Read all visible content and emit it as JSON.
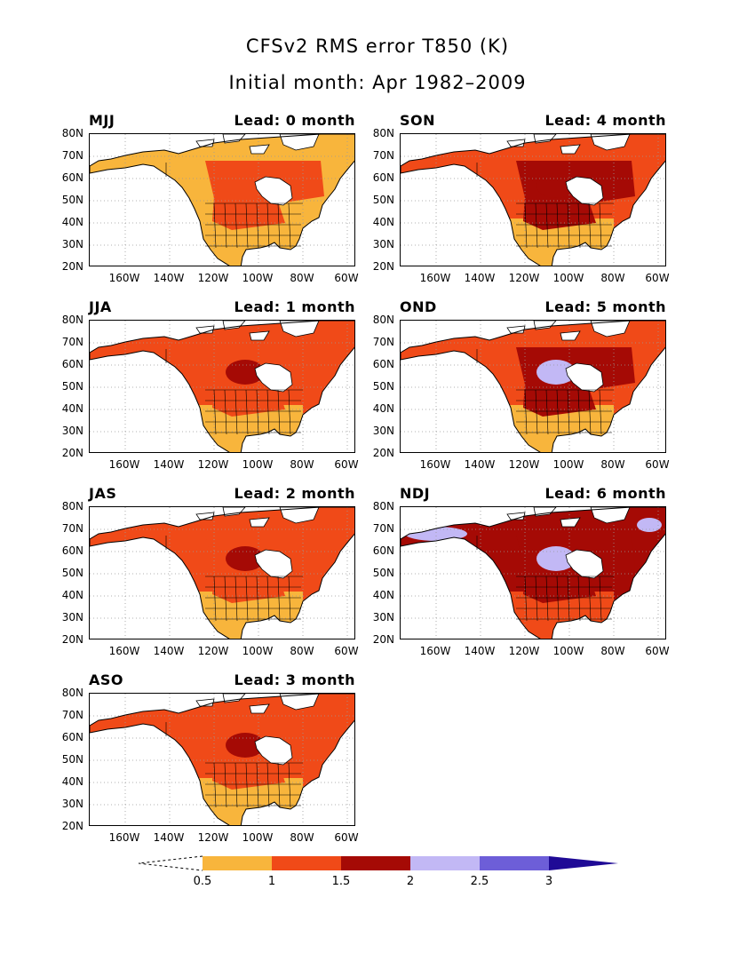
{
  "title": "CFSv2 RMS error T850 (K)",
  "subtitle": "Initial month: Apr 1982–2009",
  "colors": {
    "c0_5": "#f8b53c",
    "c1": "#f04a18",
    "c1_5": "#a50a05",
    "c2": "#c2b8f5",
    "c2_5": "#6d5ed8",
    "c3": "#1f0a96",
    "land_lines": "#000000",
    "ocean": "#ffffff"
  },
  "lat_labels": [
    "80N",
    "70N",
    "60N",
    "50N",
    "40N",
    "30N",
    "20N"
  ],
  "lon_labels": [
    "160W",
    "140W",
    "120W",
    "100W",
    "80W",
    "60W"
  ],
  "panels": [
    {
      "season": "MJJ",
      "lead": "Lead: 0 month",
      "level": "low"
    },
    {
      "season": "JJA",
      "lead": "Lead: 1 month",
      "level": "mid"
    },
    {
      "season": "JAS",
      "lead": "Lead: 2 month",
      "level": "mid"
    },
    {
      "season": "ASO",
      "lead": "Lead: 3 month",
      "level": "mid"
    },
    {
      "season": "SON",
      "lead": "Lead: 4 month",
      "level": "high"
    },
    {
      "season": "OND",
      "lead": "Lead: 5 month",
      "level": "higher"
    },
    {
      "season": "NDJ",
      "lead": "Lead: 6 month",
      "level": "highest"
    }
  ],
  "colorbar": {
    "ticks": [
      "0.5",
      "1",
      "1.5",
      "2",
      "2.5",
      "3"
    ],
    "bins": [
      "c0_5",
      "c1",
      "c1_5",
      "c2",
      "c2_5",
      "c3"
    ]
  }
}
